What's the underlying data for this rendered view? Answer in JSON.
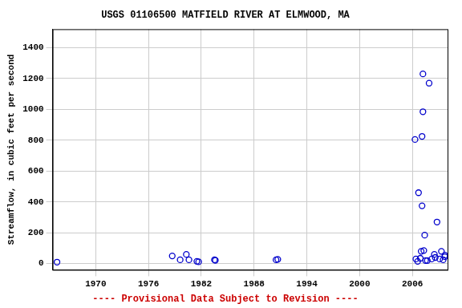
{
  "chart_data": {
    "type": "scatter",
    "title": "USGS 01106500 MATFIELD RIVER AT ELMWOOD, MA",
    "subtitle": "---- Provisional Data Subject to Revision ----",
    "ylabel": "Streamflow, in cubic feet per second",
    "x": [
      1965.6,
      1978.7,
      1979.6,
      1980.3,
      1980.6,
      1981.5,
      1981.7,
      1983.5,
      1983.6,
      1990.5,
      1990.7,
      2006.3,
      2006.4,
      2006.6,
      2006.7,
      2006.9,
      2007.0,
      2007.1,
      2007.1,
      2007.2,
      2007.2,
      2007.3,
      2007.4,
      2007.5,
      2007.7,
      2007.9,
      2008.2,
      2008.5,
      2008.6,
      2008.8,
      2009.1,
      2009.3,
      2009.5,
      2009.7,
      2009.7
    ],
    "values": [
      10,
      50,
      25,
      60,
      25,
      15,
      12,
      25,
      22,
      25,
      28,
      805,
      30,
      15,
      460,
      35,
      80,
      375,
      825,
      985,
      1230,
      85,
      185,
      20,
      20,
      1170,
      30,
      60,
      40,
      270,
      30,
      80,
      25,
      55,
      45
    ],
    "color": "#0000cc",
    "marker": "circle",
    "xlim": [
      1965.1,
      2010.0
    ],
    "xticks": [
      1970,
      1976,
      1982,
      1988,
      1994,
      2000,
      2006
    ],
    "ylim": [
      -40,
      1520
    ],
    "yticks": [
      0,
      200,
      400,
      600,
      800,
      1000,
      1200,
      1400
    ],
    "grid": true
  }
}
